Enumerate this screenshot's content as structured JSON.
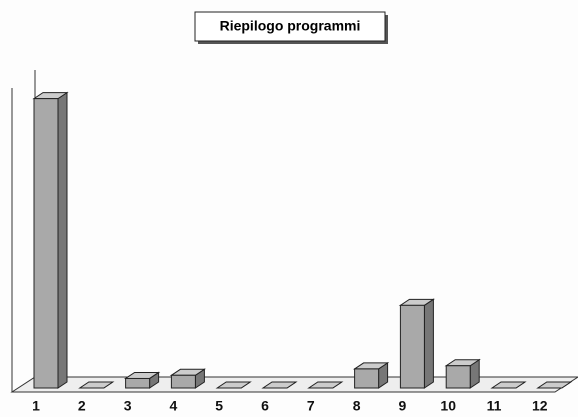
{
  "chart_data": {
    "type": "bar3d",
    "title": "Riepilogo programmi",
    "categories": [
      "1",
      "2",
      "3",
      "4",
      "5",
      "6",
      "7",
      "8",
      "9",
      "10",
      "11",
      "12"
    ],
    "values": [
      91,
      0,
      3,
      4,
      0,
      0,
      0,
      6,
      26,
      7,
      0,
      0
    ],
    "color": "#a9a9a9",
    "ylim": [
      0,
      100
    ]
  }
}
